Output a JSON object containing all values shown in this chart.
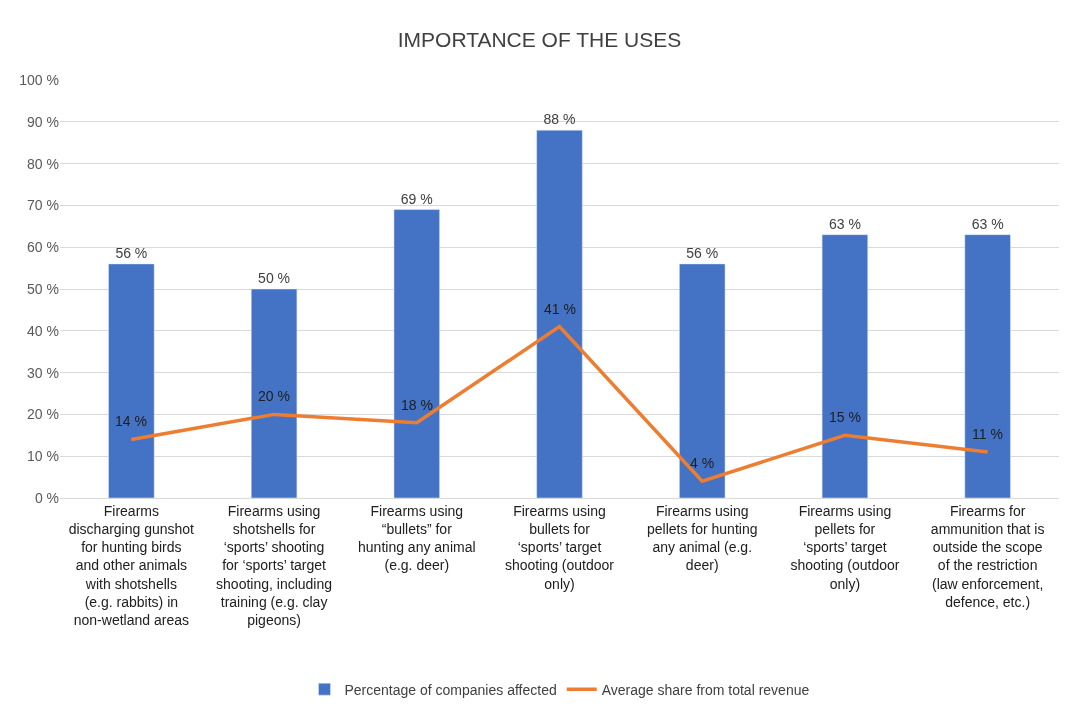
{
  "chart_data": {
    "type": "bar",
    "title": "IMPORTANCE OF THE USES",
    "categories": [
      "Firearms discharging gunshot for hunting birds and other animals with shotshells (e.g. rabbits) in non-wetland areas",
      "Firearms using shotshells for ‘sports’ shooting for ‘sports’ target shooting, including training (e.g. clay pigeons)",
      "Firearms using “bullets” for hunting any animal (e.g. deer)",
      "Firearms using bullets for ‘sports’ target shooting (outdoor only)",
      "Firearms using pellets for hunting any animal (e.g. deer)",
      "Firearms using pellets for ‘sports’ target shooting (outdoor only)",
      "Firearms for ammunition that is outside the scope of the restriction (law enforcement, defence, etc.)"
    ],
    "series": [
      {
        "name": "Percentage of companies affected",
        "color": "#4472c4",
        "values": [
          56,
          50,
          69,
          88,
          56,
          63,
          63
        ],
        "value_labels": [
          "56 %",
          "50 %",
          "69 %",
          "88 %",
          "56 %",
          "63 %",
          "63 %"
        ]
      },
      {
        "name": "Average share from total revenue",
        "type": "line",
        "color": "#ed7d31",
        "values": [
          14,
          20,
          18,
          41,
          4,
          15,
          11
        ],
        "value_labels": [
          "14 %",
          "20 %",
          "18 %",
          "41 %",
          "4 %",
          "15 %",
          "11 %"
        ]
      }
    ],
    "ylim": [
      0,
      100
    ],
    "yticks": [
      {
        "value": 0,
        "label": "0 %"
      },
      {
        "value": 10,
        "label": "10 %"
      },
      {
        "value": 20,
        "label": "20 %"
      },
      {
        "value": 30,
        "label": "30 %"
      },
      {
        "value": 40,
        "label": "40 %"
      },
      {
        "value": 50,
        "label": "50 %"
      },
      {
        "value": 60,
        "label": "60 %"
      },
      {
        "value": 70,
        "label": "70 %"
      },
      {
        "value": 80,
        "label": "80 %"
      },
      {
        "value": 90,
        "label": "90 %"
      },
      {
        "value": 100,
        "label": "100 %"
      }
    ],
    "grid": "y",
    "legend": "bottom",
    "marker": "none",
    "line_style": "solid"
  }
}
